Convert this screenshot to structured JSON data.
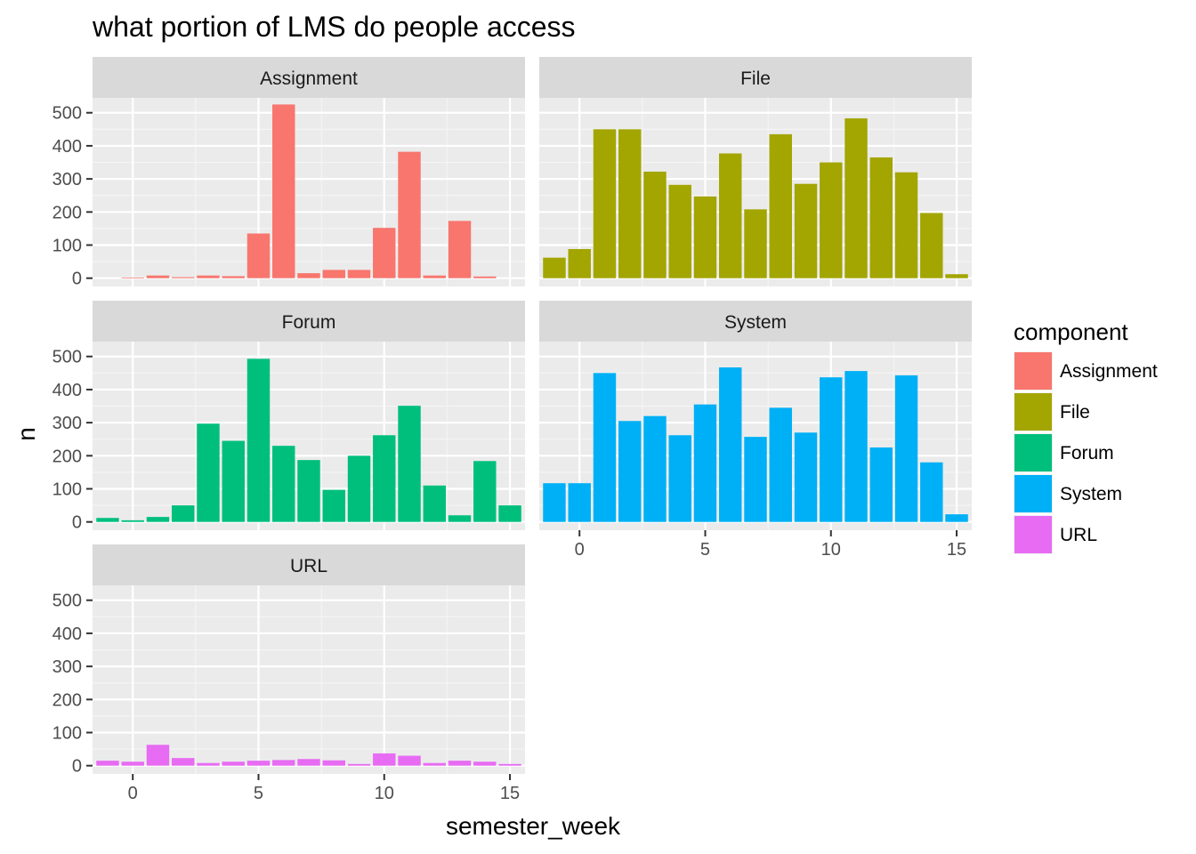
{
  "chart_data": {
    "type": "bar",
    "title": "what portion of LMS do people access",
    "xlabel": "semester_week",
    "ylabel": "n",
    "xlim": [
      -1.6,
      15.6
    ],
    "ylim": [
      -25,
      545
    ],
    "x_ticks": [
      0,
      5,
      10,
      15
    ],
    "y_ticks": [
      0,
      100,
      200,
      300,
      400,
      500
    ],
    "grid": true,
    "facets": "wrap, 2 columns, shared axes",
    "legend": {
      "title": "component",
      "position": "right"
    },
    "x": [
      -1,
      0,
      1,
      2,
      3,
      4,
      5,
      6,
      7,
      8,
      9,
      10,
      11,
      12,
      13,
      14,
      15
    ],
    "series": [
      {
        "name": "Assignment",
        "color": "#F8766D",
        "x": [
          0,
          1,
          2,
          3,
          4,
          5,
          6,
          7,
          8,
          9,
          10,
          11,
          12,
          13,
          14
        ],
        "values": [
          2,
          8,
          3,
          8,
          6,
          135,
          525,
          15,
          25,
          25,
          152,
          382,
          8,
          173,
          5
        ]
      },
      {
        "name": "File",
        "color": "#A3A500",
        "x": [
          -1,
          0,
          1,
          2,
          3,
          4,
          5,
          6,
          7,
          8,
          9,
          10,
          11,
          12,
          13,
          14,
          15
        ],
        "values": [
          62,
          88,
          450,
          450,
          322,
          282,
          247,
          377,
          208,
          435,
          285,
          350,
          483,
          365,
          320,
          197,
          12
        ]
      },
      {
        "name": "Forum",
        "color": "#00BF7D",
        "x": [
          -1,
          0,
          1,
          2,
          3,
          4,
          5,
          6,
          7,
          8,
          9,
          10,
          11,
          12,
          13,
          14,
          15
        ],
        "values": [
          12,
          5,
          15,
          50,
          297,
          245,
          493,
          230,
          187,
          97,
          200,
          262,
          351,
          110,
          20,
          184,
          50
        ]
      },
      {
        "name": "System",
        "color": "#00B0F6",
        "x": [
          -1,
          0,
          1,
          2,
          3,
          4,
          5,
          6,
          7,
          8,
          9,
          10,
          11,
          12,
          13,
          14,
          15
        ],
        "values": [
          117,
          117,
          450,
          305,
          320,
          262,
          355,
          467,
          257,
          345,
          270,
          437,
          456,
          225,
          443,
          180,
          23
        ]
      },
      {
        "name": "URL",
        "color": "#E76BF3",
        "x": [
          -1,
          0,
          1,
          2,
          3,
          4,
          5,
          6,
          7,
          8,
          9,
          10,
          11,
          12,
          13,
          14,
          15
        ],
        "values": [
          15,
          12,
          63,
          23,
          8,
          12,
          15,
          17,
          20,
          16,
          5,
          37,
          30,
          8,
          15,
          12,
          5
        ]
      }
    ]
  }
}
